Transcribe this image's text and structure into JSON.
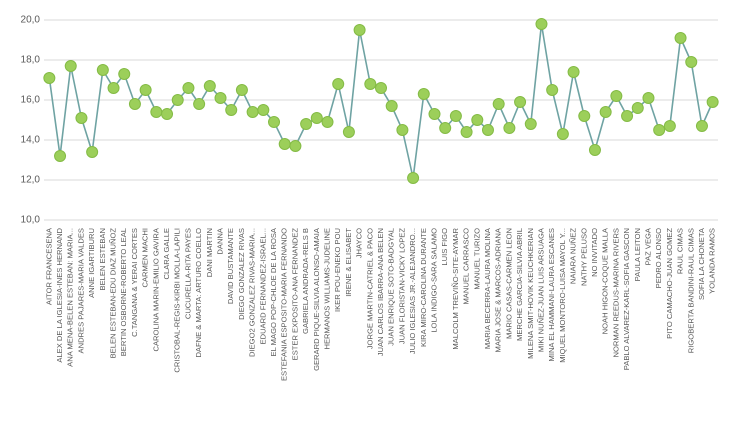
{
  "chart_data": {
    "type": "line",
    "categories": [
      "AITOR FRANCESENA",
      "ALEX DE LA IGLESIA-INES HERNAND",
      "ANA MENA-BELEN ESTEBAN: MARIA...",
      "ANDRES PAJARES-MARIA VALDES",
      "ANNE IGARTIBURU",
      "BELEN ESTEBAN",
      "BELEN ESTEBAN-EDU DIAZ MUÑOZ",
      "BERTIN OSBORNE-ROBERTO LEAL",
      "C.TANGANA & YERAI CORTES",
      "CARMEN MACHI",
      "CAROLINA MARIN-EMILIO GAVIRA",
      "CLARA GALLE",
      "CRISTOBAL-REGIS-KIRBI MOLLA-LAPILI",
      "CUCURELLA-RITA PAYES",
      "DAFNE & MARTA: ARTURO COELLO",
      "DANI MARTIN",
      "DANNA",
      "DAVID BUSTAMANTE",
      "DIEGO GONZALEZ RIVAS",
      "DIEGO2 GONZALEZ RIVAS-MARIA...",
      "EDUARD FERNANDEZ-ISRAEL...",
      "EL MAGO POP-CHLOE DE LA ROSA",
      "ESTEFANIA ESPOSITO-MARIA FERNANDO",
      "ESTER EXPOSITO-ANA FERNANDEZ",
      "GABRIELA ANDRADA-RELS B",
      "GERARD PIQUE-SILVIA ALONSO-AMAIA",
      "HERMANOS WILLIAMS-JUDELINE",
      "IKER POU-ENEKO POU",
      "IRENE & ELISABET",
      "JHAYCO",
      "JORGE MARTIN-CATRIEL & PACO",
      "JUAN CARLOS IBARRA-ANA BELEN",
      "JUAN ENRIQUE SOTO-BADGYAL",
      "JUAN FLORISTAN-VICKY LOPEZ",
      "JULIO IGLESIAS JR.-ALEJANDRO...",
      "KIRA MIRO-CAROLINA DURANTE",
      "LOLA INDIGO-SARA SALAMO",
      "LUIS FIGO",
      "MALCOLM TREVIÑO-SITE-AYMAR",
      "MANUEL CARRASCO",
      "MANUEL TURIZO",
      "MARIA BECERRA-LAURA MOLINA",
      "MARIA JOSE & MARCOS-ADRIANA",
      "MARIO CASAS-CARMEN LEON",
      "MERCHE GARCIA-SILVIA ABRIL",
      "MILENA SMIT-HOVIK KEUCHKERIAN",
      "MIKI NUÑEZ-JUAN LUIS ARSUAGA",
      "MINA EL HAMMANI-LAURA ESCANES",
      "MIQUEL MONTORO-LUISA MAYOL Y...",
      "NAIARA NUÑEZ",
      "NATHY PELUSO",
      "NO INVITADO",
      "NOAH HIGON-COQUE MALLA",
      "NORMAN REEDUS-MARINA RIVERS",
      "PABLO ALVAREZ-KARL-SOFIA GASCON",
      "PAULA LEITON",
      "PAZ VEGA",
      "PEDRO ALONSO",
      "PITO CAMACHO-JUAN GOMEZ",
      "RAUL CIMAS",
      "RIGOBERTA BANDINI-RAUL CIMAS",
      "SOFIA LA CHONETA",
      "YOLANDA RAMOS"
    ],
    "series": [
      {
        "color": "#6fa3a3",
        "marker_color": "#9ccf5a",
        "values": [
          17.1,
          13.2,
          17.7,
          15.1,
          13.4,
          17.5,
          16.6,
          17.3,
          15.8,
          16.5,
          15.4,
          15.3,
          16.0,
          16.6,
          15.8,
          16.7,
          16.1,
          15.5,
          16.5,
          15.4,
          15.5,
          14.9,
          13.8,
          13.7,
          14.8,
          15.1,
          14.9,
          16.8,
          14.4,
          19.5,
          16.8,
          16.6,
          15.7,
          14.5,
          12.1,
          16.3,
          15.3,
          14.6,
          15.2,
          14.4,
          15.0,
          14.5,
          15.8,
          14.6,
          15.9,
          14.8,
          19.8,
          16.5,
          14.3,
          17.4,
          15.2,
          13.5,
          15.4,
          16.2,
          15.2,
          15.6,
          16.1,
          14.5,
          14.7,
          19.1,
          17.9,
          14.7,
          15.9
        ]
      }
    ],
    "ylim": [
      10,
      20
    ],
    "yticks": [
      {
        "value": 10,
        "label": "10,0"
      },
      {
        "value": 12,
        "label": "12,0"
      },
      {
        "value": 14,
        "label": "14,0"
      },
      {
        "value": 16,
        "label": "16,0"
      },
      {
        "value": 18,
        "label": "18,0"
      },
      {
        "value": 20,
        "label": "20,0"
      }
    ],
    "grid": true
  }
}
